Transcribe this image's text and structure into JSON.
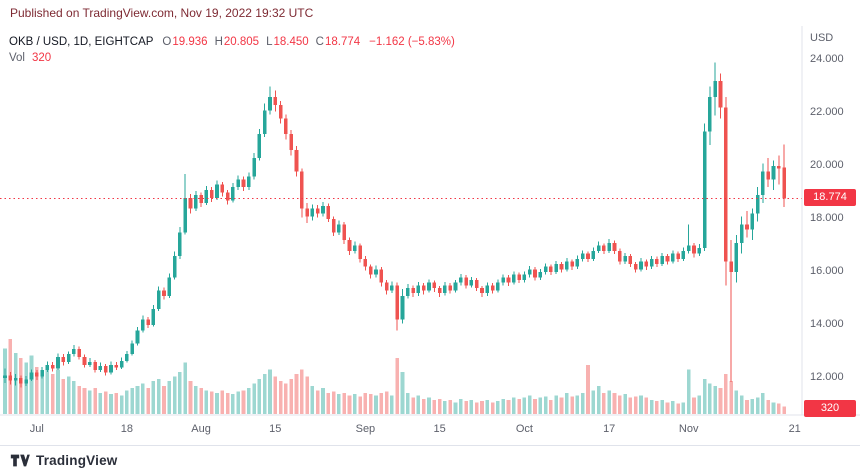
{
  "published_bar": {
    "text": "Published on TradingView.com, Nov 19, 2022 19:32 UTC"
  },
  "legend": {
    "symbol": "OKB / USD, 1D, EIGHTCAP",
    "ohlc": [
      {
        "label": "O",
        "value": "19.936"
      },
      {
        "label": "H",
        "value": "20.805"
      },
      {
        "label": "L",
        "value": "18.450"
      },
      {
        "label": "C",
        "value": "18.774"
      }
    ],
    "change": "−1.162 (−5.83%)",
    "vol_label": "Vol",
    "vol_value": "320"
  },
  "axes": {
    "currency": "USD",
    "price_ticks": [
      "24.000",
      "22.000",
      "20.000",
      "18.000",
      "16.000",
      "14.000",
      "12.000"
    ],
    "price_badge": "18.774",
    "volume_badge": "320",
    "time_ticks": [
      {
        "label": "Jul",
        "day": 6
      },
      {
        "label": "18",
        "day": 23
      },
      {
        "label": "Aug",
        "day": 37
      },
      {
        "label": "15",
        "day": 51
      },
      {
        "label": "Sep",
        "day": 68
      },
      {
        "label": "15",
        "day": 82
      },
      {
        "label": "Oct",
        "day": 98
      },
      {
        "label": "17",
        "day": 114
      },
      {
        "label": "Nov",
        "day": 129
      },
      {
        "label": "21",
        "day": 149
      }
    ]
  },
  "colors": {
    "up": "#26a69a",
    "down": "#ef5350",
    "up_vol": "rgba(38,166,154,0.45)",
    "down_vol": "rgba(239,83,80,0.45)",
    "accent_red": "#f23645",
    "text": "#131722",
    "muted": "#5d606b",
    "axis_line": "#e0e3eb",
    "published_text": "#7e2a33",
    "badge_text": "#ffffff",
    "logo": "#2a2e39"
  },
  "footer": {
    "brand": "TradingView"
  },
  "chart_data": {
    "type": "candlestick+volume",
    "symbol": "OKB/USD",
    "interval": "1D",
    "exchange": "EIGHTCAP",
    "title": "OKB / USD, 1D, EIGHTCAP",
    "legend_position": "top-left",
    "grid": false,
    "price_axis": {
      "side": "right",
      "min": 11.2,
      "max": 25.3,
      "ticks": [
        24,
        22,
        20,
        18,
        16,
        14,
        12
      ],
      "unit": "USD"
    },
    "time_axis": {
      "start": "2022-06-25",
      "end": "2022-11-19",
      "labels": [
        "Jul",
        "18",
        "Aug",
        "15",
        "Sep",
        "15",
        "Oct",
        "17",
        "Nov",
        "21"
      ]
    },
    "last": {
      "open": 19.936,
      "high": 20.805,
      "low": 18.45,
      "close": 18.774,
      "change": -1.162,
      "change_pct": -5.83,
      "volume": 320
    },
    "last_price_line": {
      "value": 18.774,
      "style": "dotted",
      "color": "#f23645"
    },
    "candles_format": [
      "open",
      "high",
      "low",
      "close",
      "volume"
    ],
    "candles": [
      [
        12.0,
        12.35,
        11.82,
        12.1,
        2800
      ],
      [
        12.1,
        12.22,
        11.75,
        11.9,
        3200
      ],
      [
        11.9,
        12.15,
        11.72,
        12.0,
        2600
      ],
      [
        12.0,
        12.1,
        11.65,
        11.8,
        2400
      ],
      [
        11.8,
        12.08,
        11.7,
        11.95,
        2200
      ],
      [
        11.95,
        12.32,
        11.88,
        12.2,
        2500
      ],
      [
        12.2,
        12.3,
        11.92,
        12.05,
        2000
      ],
      [
        12.05,
        12.42,
        11.98,
        12.3,
        1800
      ],
      [
        12.3,
        12.62,
        12.22,
        12.5,
        2100
      ],
      [
        12.5,
        12.6,
        12.25,
        12.35,
        1700
      ],
      [
        12.35,
        12.92,
        12.3,
        12.8,
        1900
      ],
      [
        12.8,
        12.9,
        12.48,
        12.6,
        1500
      ],
      [
        12.6,
        13.0,
        12.52,
        12.9,
        1600
      ],
      [
        12.9,
        13.25,
        12.82,
        13.1,
        1400
      ],
      [
        13.1,
        13.18,
        12.7,
        12.8,
        1200
      ],
      [
        12.8,
        12.88,
        12.4,
        12.5,
        1100
      ],
      [
        12.5,
        12.75,
        12.42,
        12.6,
        1000
      ],
      [
        12.6,
        12.68,
        12.2,
        12.3,
        1100
      ],
      [
        12.3,
        12.58,
        12.22,
        12.45,
        900
      ],
      [
        12.45,
        12.52,
        12.1,
        12.2,
        950
      ],
      [
        12.2,
        12.62,
        12.14,
        12.5,
        850
      ],
      [
        12.5,
        12.6,
        12.3,
        12.4,
        900
      ],
      [
        12.4,
        12.78,
        12.34,
        12.65,
        800
      ],
      [
        12.65,
        13.02,
        12.58,
        12.9,
        1000
      ],
      [
        12.9,
        13.42,
        12.84,
        13.3,
        1100
      ],
      [
        13.3,
        13.92,
        13.22,
        13.8,
        1200
      ],
      [
        13.8,
        14.35,
        13.72,
        14.2,
        1300
      ],
      [
        14.2,
        14.3,
        13.88,
        14.0,
        1100
      ],
      [
        14.0,
        14.75,
        13.94,
        14.6,
        1400
      ],
      [
        14.6,
        15.45,
        14.52,
        15.3,
        1500
      ],
      [
        15.3,
        15.42,
        14.96,
        15.1,
        1200
      ],
      [
        15.1,
        15.95,
        15.02,
        15.8,
        1400
      ],
      [
        15.8,
        16.78,
        15.72,
        16.6,
        1600
      ],
      [
        16.6,
        17.7,
        16.5,
        17.5,
        1800
      ],
      [
        17.5,
        19.7,
        17.42,
        18.8,
        2200
      ],
      [
        18.8,
        18.95,
        18.2,
        18.4,
        1400
      ],
      [
        18.4,
        19.05,
        18.3,
        18.9,
        1200
      ],
      [
        18.9,
        19.0,
        18.45,
        18.6,
        1100
      ],
      [
        18.6,
        19.25,
        18.52,
        19.1,
        1000
      ],
      [
        19.1,
        19.2,
        18.65,
        18.8,
        950
      ],
      [
        18.8,
        19.45,
        18.72,
        19.3,
        900
      ],
      [
        19.3,
        19.4,
        18.85,
        19.0,
        1000
      ],
      [
        19.0,
        19.1,
        18.55,
        18.7,
        900
      ],
      [
        18.7,
        19.35,
        18.62,
        19.2,
        850
      ],
      [
        19.2,
        19.65,
        19.1,
        19.5,
        950
      ],
      [
        19.5,
        19.6,
        19.05,
        19.2,
        1000
      ],
      [
        19.2,
        19.75,
        19.1,
        19.6,
        1100
      ],
      [
        19.6,
        20.5,
        19.5,
        20.3,
        1300
      ],
      [
        20.3,
        21.4,
        20.2,
        21.2,
        1500
      ],
      [
        21.2,
        22.35,
        21.1,
        22.1,
        1700
      ],
      [
        22.1,
        23.0,
        21.95,
        22.6,
        1900
      ],
      [
        22.6,
        22.85,
        22.05,
        22.3,
        1600
      ],
      [
        22.3,
        22.45,
        21.6,
        21.8,
        1400
      ],
      [
        21.8,
        21.95,
        21.0,
        21.2,
        1300
      ],
      [
        21.2,
        21.35,
        20.4,
        20.6,
        1500
      ],
      [
        20.6,
        20.75,
        19.6,
        19.8,
        1700
      ],
      [
        19.8,
        19.9,
        18.05,
        18.4,
        1900
      ],
      [
        18.4,
        18.6,
        17.85,
        18.1,
        1600
      ],
      [
        18.1,
        18.55,
        17.95,
        18.4,
        1200
      ],
      [
        18.4,
        18.52,
        18.05,
        18.2,
        1000
      ],
      [
        18.2,
        18.65,
        18.1,
        18.5,
        1100
      ],
      [
        18.5,
        18.58,
        17.88,
        18.0,
        900
      ],
      [
        18.0,
        18.1,
        17.35,
        17.5,
        950
      ],
      [
        17.5,
        17.95,
        17.4,
        17.8,
        850
      ],
      [
        17.8,
        17.88,
        17.05,
        17.2,
        900
      ],
      [
        17.2,
        17.3,
        16.65,
        16.8,
        800
      ],
      [
        16.8,
        17.15,
        16.7,
        17.0,
        850
      ],
      [
        17.0,
        17.08,
        16.35,
        16.5,
        750
      ],
      [
        16.5,
        16.6,
        16.05,
        16.2,
        900
      ],
      [
        16.2,
        16.28,
        15.75,
        15.9,
        850
      ],
      [
        15.9,
        16.25,
        15.8,
        16.1,
        800
      ],
      [
        16.1,
        16.18,
        15.45,
        15.6,
        900
      ],
      [
        15.6,
        15.7,
        15.15,
        15.3,
        950
      ],
      [
        15.3,
        15.65,
        15.2,
        15.5,
        800
      ],
      [
        15.5,
        15.6,
        13.8,
        14.2,
        2400
      ],
      [
        14.2,
        15.35,
        14.05,
        15.1,
        1800
      ],
      [
        15.1,
        15.55,
        15.0,
        15.4,
        900
      ],
      [
        15.4,
        15.5,
        15.05,
        15.2,
        700
      ],
      [
        15.2,
        15.62,
        15.1,
        15.5,
        800
      ],
      [
        15.5,
        15.58,
        15.15,
        15.3,
        650
      ],
      [
        15.3,
        15.72,
        15.22,
        15.6,
        700
      ],
      [
        15.6,
        15.68,
        15.25,
        15.4,
        600
      ],
      [
        15.4,
        15.48,
        15.05,
        15.2,
        650
      ],
      [
        15.2,
        15.62,
        15.12,
        15.5,
        550
      ],
      [
        15.5,
        15.58,
        15.18,
        15.3,
        600
      ],
      [
        15.3,
        15.7,
        15.22,
        15.6,
        500
      ],
      [
        15.6,
        15.92,
        15.5,
        15.8,
        650
      ],
      [
        15.8,
        15.88,
        15.38,
        15.5,
        550
      ],
      [
        15.5,
        15.82,
        15.42,
        15.7,
        600
      ],
      [
        15.7,
        15.78,
        15.28,
        15.4,
        500
      ],
      [
        15.4,
        15.48,
        15.05,
        15.2,
        550
      ],
      [
        15.2,
        15.6,
        15.1,
        15.5,
        600
      ],
      [
        15.5,
        15.58,
        15.18,
        15.3,
        500
      ],
      [
        15.3,
        15.72,
        15.22,
        15.6,
        550
      ],
      [
        15.6,
        15.9,
        15.5,
        15.8,
        650
      ],
      [
        15.8,
        15.88,
        15.48,
        15.6,
        600
      ],
      [
        15.6,
        16.02,
        15.52,
        15.9,
        700
      ],
      [
        15.9,
        15.98,
        15.58,
        15.7,
        650
      ],
      [
        15.7,
        16.02,
        15.6,
        15.9,
        700
      ],
      [
        15.9,
        16.22,
        15.8,
        16.1,
        800
      ],
      [
        16.1,
        16.18,
        15.68,
        15.8,
        650
      ],
      [
        15.8,
        16.12,
        15.7,
        16.0,
        700
      ],
      [
        16.0,
        16.32,
        15.9,
        16.2,
        750
      ],
      [
        16.2,
        16.28,
        15.88,
        16.0,
        600
      ],
      [
        16.0,
        16.42,
        15.92,
        16.3,
        800
      ],
      [
        16.3,
        16.38,
        15.98,
        16.1,
        700
      ],
      [
        16.1,
        16.52,
        16.02,
        16.4,
        900
      ],
      [
        16.4,
        16.48,
        16.08,
        16.2,
        750
      ],
      [
        16.2,
        16.62,
        16.12,
        16.5,
        800
      ],
      [
        16.5,
        16.82,
        16.4,
        16.7,
        900
      ],
      [
        16.7,
        16.78,
        16.38,
        16.5,
        2100
      ],
      [
        16.5,
        16.92,
        16.42,
        16.8,
        1000
      ],
      [
        16.8,
        17.15,
        16.72,
        17.0,
        1200
      ],
      [
        17.0,
        17.08,
        16.68,
        16.8,
        900
      ],
      [
        16.8,
        17.25,
        16.72,
        17.1,
        1000
      ],
      [
        17.1,
        17.18,
        16.68,
        16.8,
        900
      ],
      [
        16.8,
        16.88,
        16.28,
        16.4,
        800
      ],
      [
        16.4,
        16.72,
        16.3,
        16.6,
        850
      ],
      [
        16.6,
        16.68,
        16.18,
        16.3,
        700
      ],
      [
        16.3,
        16.38,
        15.98,
        16.1,
        750
      ],
      [
        16.1,
        16.52,
        16.02,
        16.4,
        800
      ],
      [
        16.4,
        16.48,
        16.08,
        16.2,
        700
      ],
      [
        16.2,
        16.6,
        16.12,
        16.5,
        600
      ],
      [
        16.5,
        16.58,
        16.18,
        16.3,
        550
      ],
      [
        16.3,
        16.72,
        16.22,
        16.6,
        600
      ],
      [
        16.6,
        16.68,
        16.28,
        16.4,
        500
      ],
      [
        16.4,
        16.82,
        16.32,
        16.7,
        550
      ],
      [
        16.7,
        16.78,
        16.38,
        16.5,
        450
      ],
      [
        16.5,
        16.92,
        16.42,
        16.8,
        500
      ],
      [
        16.8,
        17.8,
        16.7,
        17.0,
        1900
      ],
      [
        17.0,
        17.1,
        16.55,
        16.7,
        700
      ],
      [
        16.7,
        17.05,
        16.6,
        16.9,
        800
      ],
      [
        16.9,
        21.6,
        16.8,
        21.3,
        1500
      ],
      [
        21.3,
        23.0,
        20.8,
        22.6,
        1300
      ],
      [
        22.6,
        23.9,
        21.9,
        23.2,
        1200
      ],
      [
        23.2,
        23.5,
        21.8,
        22.2,
        1100
      ],
      [
        22.2,
        22.6,
        15.5,
        16.4,
        1700
      ],
      [
        16.4,
        17.2,
        11.85,
        16.0,
        1400
      ],
      [
        16.0,
        17.4,
        15.6,
        17.1,
        1000
      ],
      [
        17.1,
        18.1,
        16.7,
        17.8,
        800
      ],
      [
        17.8,
        18.3,
        17.3,
        17.6,
        600
      ],
      [
        17.6,
        18.4,
        17.2,
        18.2,
        650
      ],
      [
        18.2,
        19.2,
        17.9,
        18.9,
        700
      ],
      [
        18.9,
        20.1,
        18.6,
        19.8,
        900
      ],
      [
        19.8,
        20.3,
        19.2,
        19.5,
        600
      ],
      [
        19.5,
        20.2,
        19.1,
        20.0,
        500
      ],
      [
        20.0,
        20.4,
        19.3,
        19.9,
        450
      ],
      [
        19.936,
        20.805,
        18.45,
        18.774,
        320
      ]
    ]
  }
}
